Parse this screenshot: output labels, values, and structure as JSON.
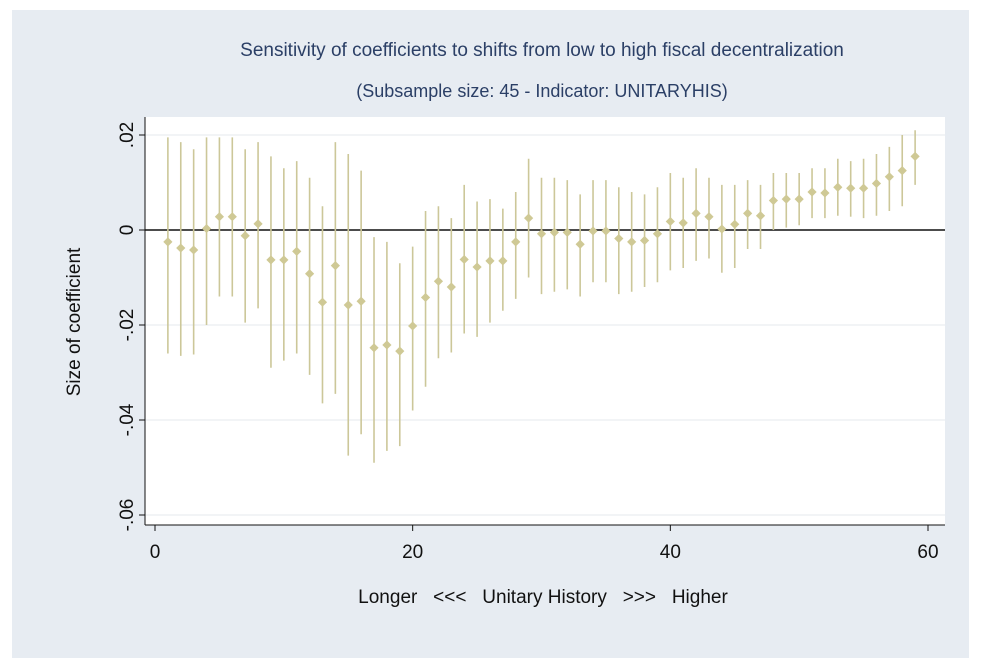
{
  "chart_data": {
    "type": "scatter",
    "title": "Sensitivity of coefficients to shifts from low to high fiscal decentralization",
    "subtitle": "(Subsample size: 45 - Indicator: UNITARYHIS)",
    "xlabel": "Longer   <<<   Unitary History   >>>   Higher",
    "ylabel": "Size of coefficient",
    "xlim": [
      -1,
      61
    ],
    "ylim": [
      -0.062,
      0.024
    ],
    "x_ticks": [
      0,
      20,
      40,
      60
    ],
    "x_tick_labels": [
      "0",
      "20",
      "40",
      "60"
    ],
    "y_ticks": [
      0.02,
      0,
      -0.02,
      -0.04,
      -0.06
    ],
    "y_tick_labels": [
      ".02",
      "0",
      "-.02",
      "-.04",
      "-.06"
    ],
    "grid": true,
    "legend": "none",
    "zero_line": true,
    "colors": {
      "marker": "#cfc995",
      "interval": "#ccc799",
      "background_outer": "#e7ecf2",
      "plot_area": "#ffffff",
      "gridline": "#e4e8ee",
      "title": "#2b3f66"
    },
    "series": [
      {
        "x": [
          1,
          2,
          3,
          4,
          5,
          6,
          7,
          8,
          9,
          10,
          11,
          12,
          13,
          14,
          15,
          16,
          17,
          18,
          19,
          20,
          21,
          22,
          23,
          24,
          25,
          26,
          27,
          28,
          29,
          30,
          31,
          32,
          33,
          34,
          35,
          36,
          37,
          38,
          39,
          40,
          41,
          42,
          43,
          44,
          45,
          46,
          47,
          48,
          49,
          50,
          51,
          52,
          53,
          54,
          55,
          56,
          57,
          58,
          59
        ],
        "y": [
          -0.0025,
          -0.0038,
          -0.0042,
          0.0003,
          0.0028,
          0.0028,
          -0.0012,
          0.0013,
          -0.0063,
          -0.0063,
          -0.0045,
          -0.0092,
          -0.0152,
          -0.0075,
          -0.0158,
          -0.015,
          -0.0248,
          -0.0242,
          -0.0255,
          -0.0202,
          -0.0142,
          -0.0108,
          -0.012,
          -0.0062,
          -0.0078,
          -0.0065,
          -0.0065,
          -0.0025,
          0.0025,
          -0.0008,
          -0.0005,
          -0.0005,
          -0.003,
          -0.0002,
          -0.0002,
          -0.0018,
          -0.0025,
          -0.0022,
          -0.0008,
          0.0018,
          0.0015,
          0.0035,
          0.0028,
          0.0002,
          0.0012,
          0.0035,
          0.003,
          0.0062,
          0.0065,
          0.0065,
          0.008,
          0.0078,
          0.009,
          0.0088,
          0.0088,
          0.0098,
          0.0112,
          0.0125,
          0.0155
        ],
        "lower": [
          -0.026,
          -0.0265,
          -0.0262,
          -0.02,
          -0.014,
          -0.014,
          -0.0195,
          -0.0165,
          -0.029,
          -0.0275,
          -0.026,
          -0.0305,
          -0.0365,
          -0.0345,
          -0.0475,
          -0.043,
          -0.049,
          -0.0465,
          -0.0455,
          -0.038,
          -0.033,
          -0.027,
          -0.0258,
          -0.0218,
          -0.0225,
          -0.0195,
          -0.017,
          -0.0145,
          -0.01,
          -0.0135,
          -0.013,
          -0.0125,
          -0.014,
          -0.011,
          -0.011,
          -0.0135,
          -0.013,
          -0.012,
          -0.011,
          -0.0085,
          -0.008,
          -0.0065,
          -0.006,
          -0.009,
          -0.008,
          -0.004,
          -0.004,
          0.0,
          0.0005,
          0.001,
          0.0025,
          0.0025,
          0.003,
          0.0028,
          0.0025,
          0.003,
          0.004,
          0.005,
          0.0095
        ],
        "upper": [
          0.0195,
          0.0185,
          0.017,
          0.0195,
          0.0195,
          0.0195,
          0.017,
          0.0185,
          0.0155,
          0.013,
          0.0145,
          0.011,
          0.005,
          0.0185,
          0.016,
          0.0125,
          -0.0015,
          -0.0025,
          -0.007,
          -0.0035,
          0.004,
          0.005,
          0.0025,
          0.0095,
          0.006,
          0.0065,
          0.0045,
          0.008,
          0.015,
          0.011,
          0.011,
          0.0105,
          0.0075,
          0.0105,
          0.0105,
          0.009,
          0.008,
          0.0075,
          0.009,
          0.012,
          0.011,
          0.013,
          0.011,
          0.0095,
          0.0095,
          0.0105,
          0.0095,
          0.012,
          0.012,
          0.012,
          0.013,
          0.013,
          0.015,
          0.0145,
          0.015,
          0.016,
          0.0175,
          0.02,
          0.021
        ]
      }
    ]
  }
}
